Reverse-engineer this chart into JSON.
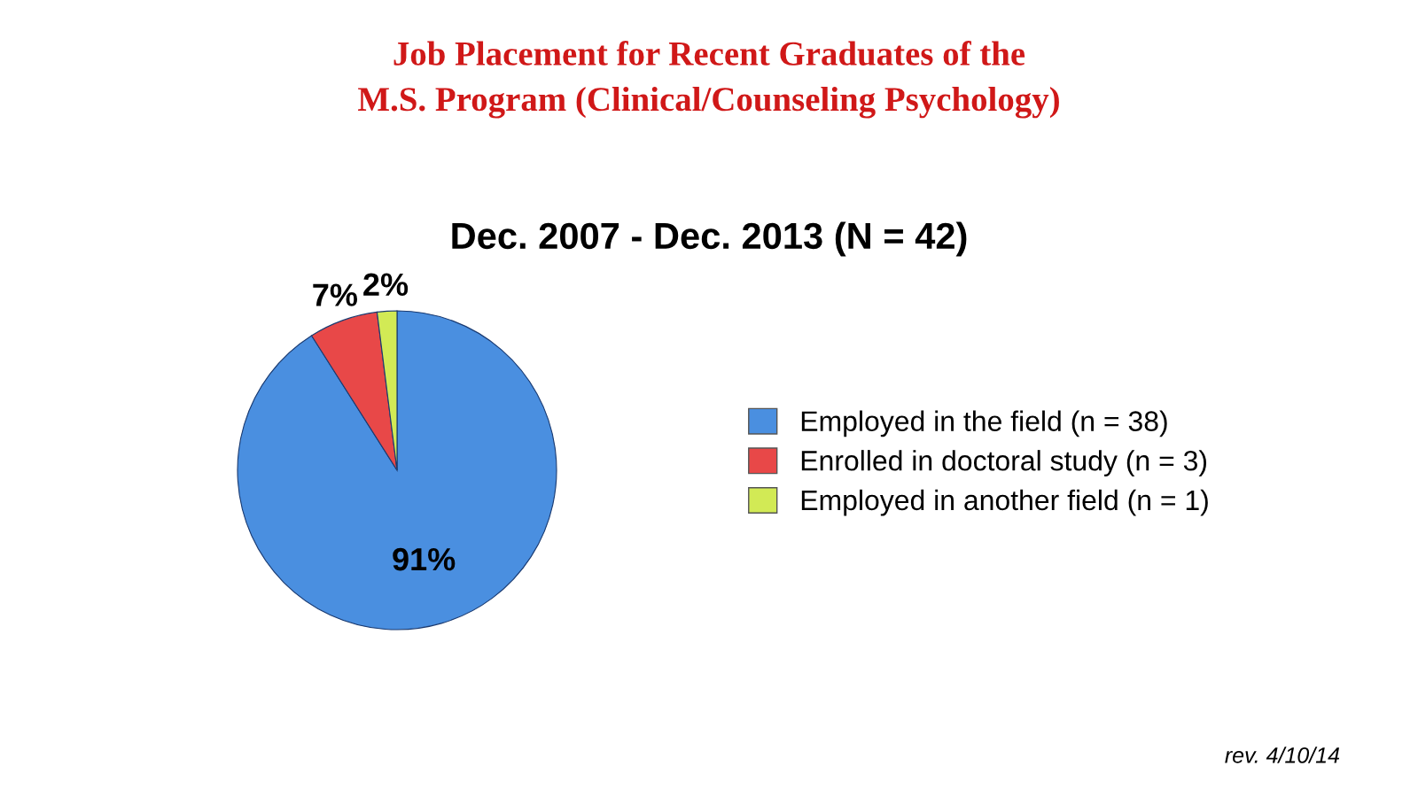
{
  "chart_data": {
    "type": "pie",
    "title": "Job Placement for Recent Graduates of the\nM.S. Program (Clinical/Counseling Psychology)",
    "subtitle": "Dec. 2007 - Dec. 2013 (N = 42)",
    "categories": [
      "Employed in the field (n = 38)",
      "Enrolled in doctoral study (n = 3)",
      "Employed in another field (n = 1)"
    ],
    "values": [
      91,
      7,
      2
    ],
    "value_labels": [
      "91%",
      "7%",
      "2%"
    ],
    "colors": [
      "#4a8fe0",
      "#e84848",
      "#d2ea55"
    ],
    "legend": "right",
    "annotations": [
      "rev. 4/10/14"
    ]
  }
}
